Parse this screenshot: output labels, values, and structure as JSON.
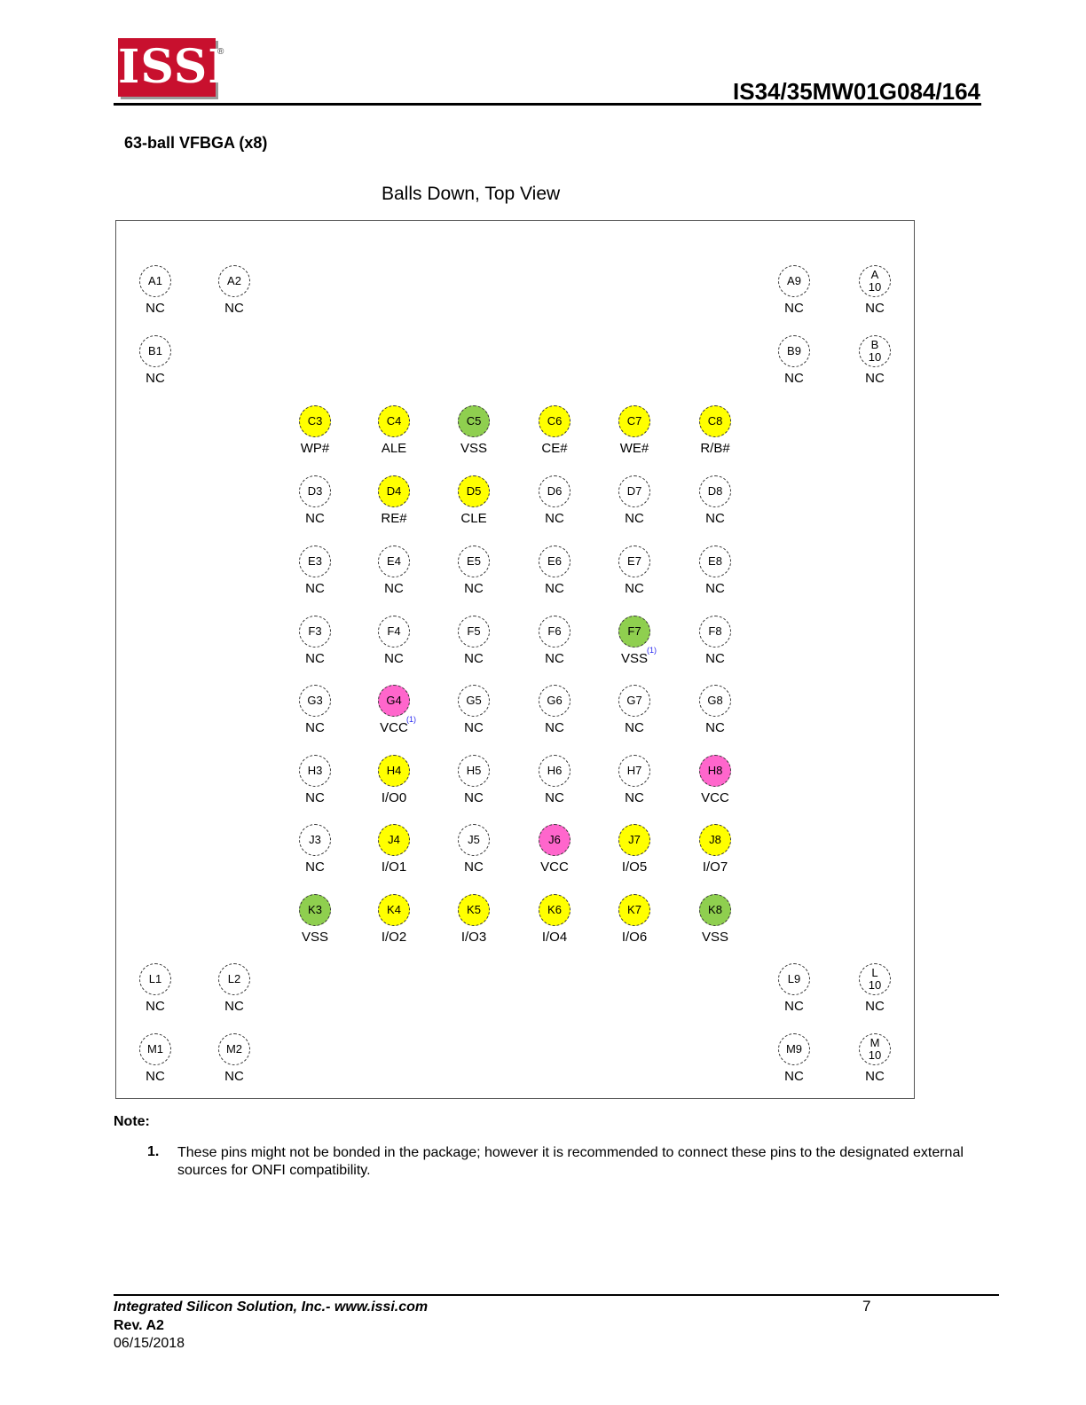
{
  "header": {
    "logo_text": "ISSI",
    "logo_mark": "®",
    "doc_title": "IS34/35MW01G084/164"
  },
  "section_title": "63-ball VFBGA (x8)",
  "view_title": "Balls Down, Top View",
  "colors": {
    "yellow": "#ffff00",
    "green": "#8fcf4f",
    "pink": "#ff66cc"
  },
  "balls": [
    {
      "id": "A1",
      "label": "NC",
      "color": "none"
    },
    {
      "id": "A2",
      "label": "NC",
      "color": "none"
    },
    {
      "id": "A9",
      "label": "NC",
      "color": "none"
    },
    {
      "id": "A 10",
      "label": "NC",
      "color": "none"
    },
    {
      "id": "B1",
      "label": "NC",
      "color": "none"
    },
    {
      "id": "B9",
      "label": "NC",
      "color": "none"
    },
    {
      "id": "B 10",
      "label": "NC",
      "color": "none"
    },
    {
      "id": "C3",
      "label": "WP#",
      "color": "yellow"
    },
    {
      "id": "C4",
      "label": "ALE",
      "color": "yellow"
    },
    {
      "id": "C5",
      "label": "VSS",
      "color": "green"
    },
    {
      "id": "C6",
      "label": "CE#",
      "color": "yellow"
    },
    {
      "id": "C7",
      "label": "WE#",
      "color": "yellow"
    },
    {
      "id": "C8",
      "label": "R/B#",
      "color": "yellow"
    },
    {
      "id": "D3",
      "label": "NC",
      "color": "none"
    },
    {
      "id": "D4",
      "label": "RE#",
      "color": "yellow"
    },
    {
      "id": "D5",
      "label": "CLE",
      "color": "yellow"
    },
    {
      "id": "D6",
      "label": "NC",
      "color": "none"
    },
    {
      "id": "D7",
      "label": "NC",
      "color": "none"
    },
    {
      "id": "D8",
      "label": "NC",
      "color": "none"
    },
    {
      "id": "E3",
      "label": "NC",
      "color": "none"
    },
    {
      "id": "E4",
      "label": "NC",
      "color": "none"
    },
    {
      "id": "E5",
      "label": "NC",
      "color": "none"
    },
    {
      "id": "E6",
      "label": "NC",
      "color": "none"
    },
    {
      "id": "E7",
      "label": "NC",
      "color": "none"
    },
    {
      "id": "E8",
      "label": "NC",
      "color": "none"
    },
    {
      "id": "F3",
      "label": "NC",
      "color": "none"
    },
    {
      "id": "F4",
      "label": "NC",
      "color": "none"
    },
    {
      "id": "F5",
      "label": "NC",
      "color": "none"
    },
    {
      "id": "F6",
      "label": "NC",
      "color": "none"
    },
    {
      "id": "F7",
      "label": "VSS",
      "color": "green",
      "note": "(1)"
    },
    {
      "id": "F8",
      "label": "NC",
      "color": "none"
    },
    {
      "id": "G3",
      "label": "NC",
      "color": "none"
    },
    {
      "id": "G4",
      "label": "VCC",
      "color": "pink",
      "note": "(1)"
    },
    {
      "id": "G5",
      "label": "NC",
      "color": "none"
    },
    {
      "id": "G6",
      "label": "NC",
      "color": "none"
    },
    {
      "id": "G7",
      "label": "NC",
      "color": "none"
    },
    {
      "id": "G8",
      "label": "NC",
      "color": "none"
    },
    {
      "id": "H3",
      "label": "NC",
      "color": "none"
    },
    {
      "id": "H4",
      "label": "I/O0",
      "color": "yellow"
    },
    {
      "id": "H5",
      "label": "NC",
      "color": "none"
    },
    {
      "id": "H6",
      "label": "NC",
      "color": "none"
    },
    {
      "id": "H7",
      "label": "NC",
      "color": "none"
    },
    {
      "id": "H8",
      "label": "VCC",
      "color": "pink"
    },
    {
      "id": "J3",
      "label": "NC",
      "color": "none"
    },
    {
      "id": "J4",
      "label": "I/O1",
      "color": "yellow"
    },
    {
      "id": "J5",
      "label": "NC",
      "color": "none"
    },
    {
      "id": "J6",
      "label": "VCC",
      "color": "pink"
    },
    {
      "id": "J7",
      "label": "I/O5",
      "color": "yellow"
    },
    {
      "id": "J8",
      "label": "I/O7",
      "color": "yellow"
    },
    {
      "id": "K3",
      "label": "VSS",
      "color": "green"
    },
    {
      "id": "K4",
      "label": "I/O2",
      "color": "yellow"
    },
    {
      "id": "K5",
      "label": "I/O3",
      "color": "yellow"
    },
    {
      "id": "K6",
      "label": "I/O4",
      "color": "yellow"
    },
    {
      "id": "K7",
      "label": "I/O6",
      "color": "yellow"
    },
    {
      "id": "K8",
      "label": "VSS",
      "color": "green"
    },
    {
      "id": "L1",
      "label": "NC",
      "color": "none"
    },
    {
      "id": "L2",
      "label": "NC",
      "color": "none"
    },
    {
      "id": "L9",
      "label": "NC",
      "color": "none"
    },
    {
      "id": "L 10",
      "label": "NC",
      "color": "none"
    },
    {
      "id": "M1",
      "label": "NC",
      "color": "none"
    },
    {
      "id": "M2",
      "label": "NC",
      "color": "none"
    },
    {
      "id": "M9",
      "label": "NC",
      "color": "none"
    },
    {
      "id": "M 10",
      "label": "NC",
      "color": "none"
    }
  ],
  "notes": {
    "heading": "Note:",
    "items": [
      {
        "num": "1.",
        "text": "These pins might not be bonded in the package; however it is recommended to connect these pins to the designated external sources for ONFI compatibility."
      }
    ]
  },
  "footer": {
    "company": "Integrated Silicon Solution, Inc.- www.issi.com",
    "page": "7",
    "rev": "Rev. A2",
    "date": "06/15/2018"
  }
}
